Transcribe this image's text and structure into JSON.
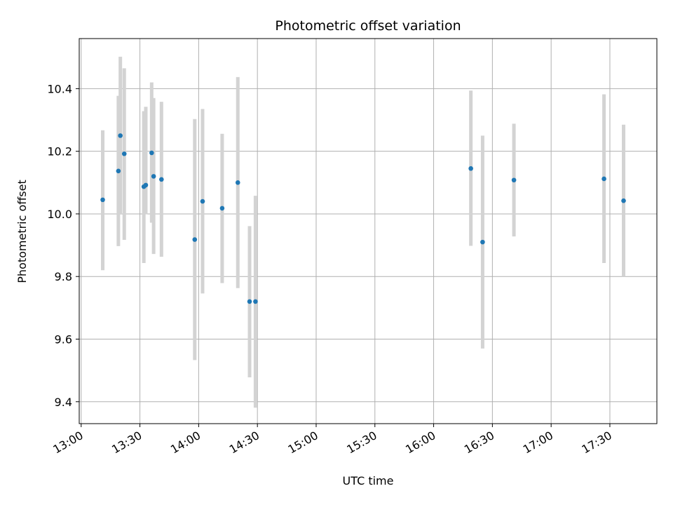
{
  "chart_data": {
    "type": "scatter",
    "title": "Photometric offset variation",
    "xlabel": "UTC time",
    "ylabel": "Photometric offset",
    "x_ticks": [
      "13:00",
      "13:30",
      "14:00",
      "14:30",
      "15:00",
      "15:30",
      "16:00",
      "16:30",
      "17:00",
      "17:30"
    ],
    "y_ticks": [
      "9.4",
      "9.6",
      "9.8",
      "10.0",
      "10.2",
      "10.4"
    ],
    "xlim": [
      "12:59",
      "17:54"
    ],
    "ylim": [
      9.33,
      10.56
    ],
    "grid": true,
    "colors": {
      "point": "#1f77b4",
      "errorbar": "#d3d3d3",
      "grid": "#b0b0b0"
    },
    "series": [
      {
        "x": [
          "13:11",
          "13:19",
          "13:20",
          "13:22",
          "13:32",
          "13:33",
          "13:36",
          "13:37",
          "13:41",
          "13:58",
          "14:02",
          "14:12",
          "14:20",
          "14:26",
          "14:29",
          "16:19",
          "16:25",
          "16:41",
          "17:27",
          "17:37"
        ],
        "y": [
          10.045,
          10.137,
          10.25,
          10.192,
          10.087,
          10.092,
          10.195,
          10.12,
          10.11,
          9.918,
          10.04,
          10.018,
          10.1,
          9.72,
          9.72,
          10.145,
          9.91,
          10.108,
          10.112,
          10.042
        ],
        "err_low": [
          9.82,
          9.897,
          10.0,
          9.917,
          9.843,
          9.999,
          9.972,
          9.872,
          9.863,
          9.533,
          9.746,
          9.779,
          9.763,
          9.478,
          9.381,
          9.898,
          9.57,
          9.928,
          9.843,
          9.8
        ],
        "err_high": [
          10.267,
          10.377,
          10.502,
          10.465,
          10.328,
          10.342,
          10.42,
          10.37,
          10.358,
          10.303,
          10.335,
          10.256,
          10.437,
          9.961,
          10.058,
          10.394,
          10.25,
          10.288,
          10.382,
          10.285
        ]
      }
    ]
  }
}
